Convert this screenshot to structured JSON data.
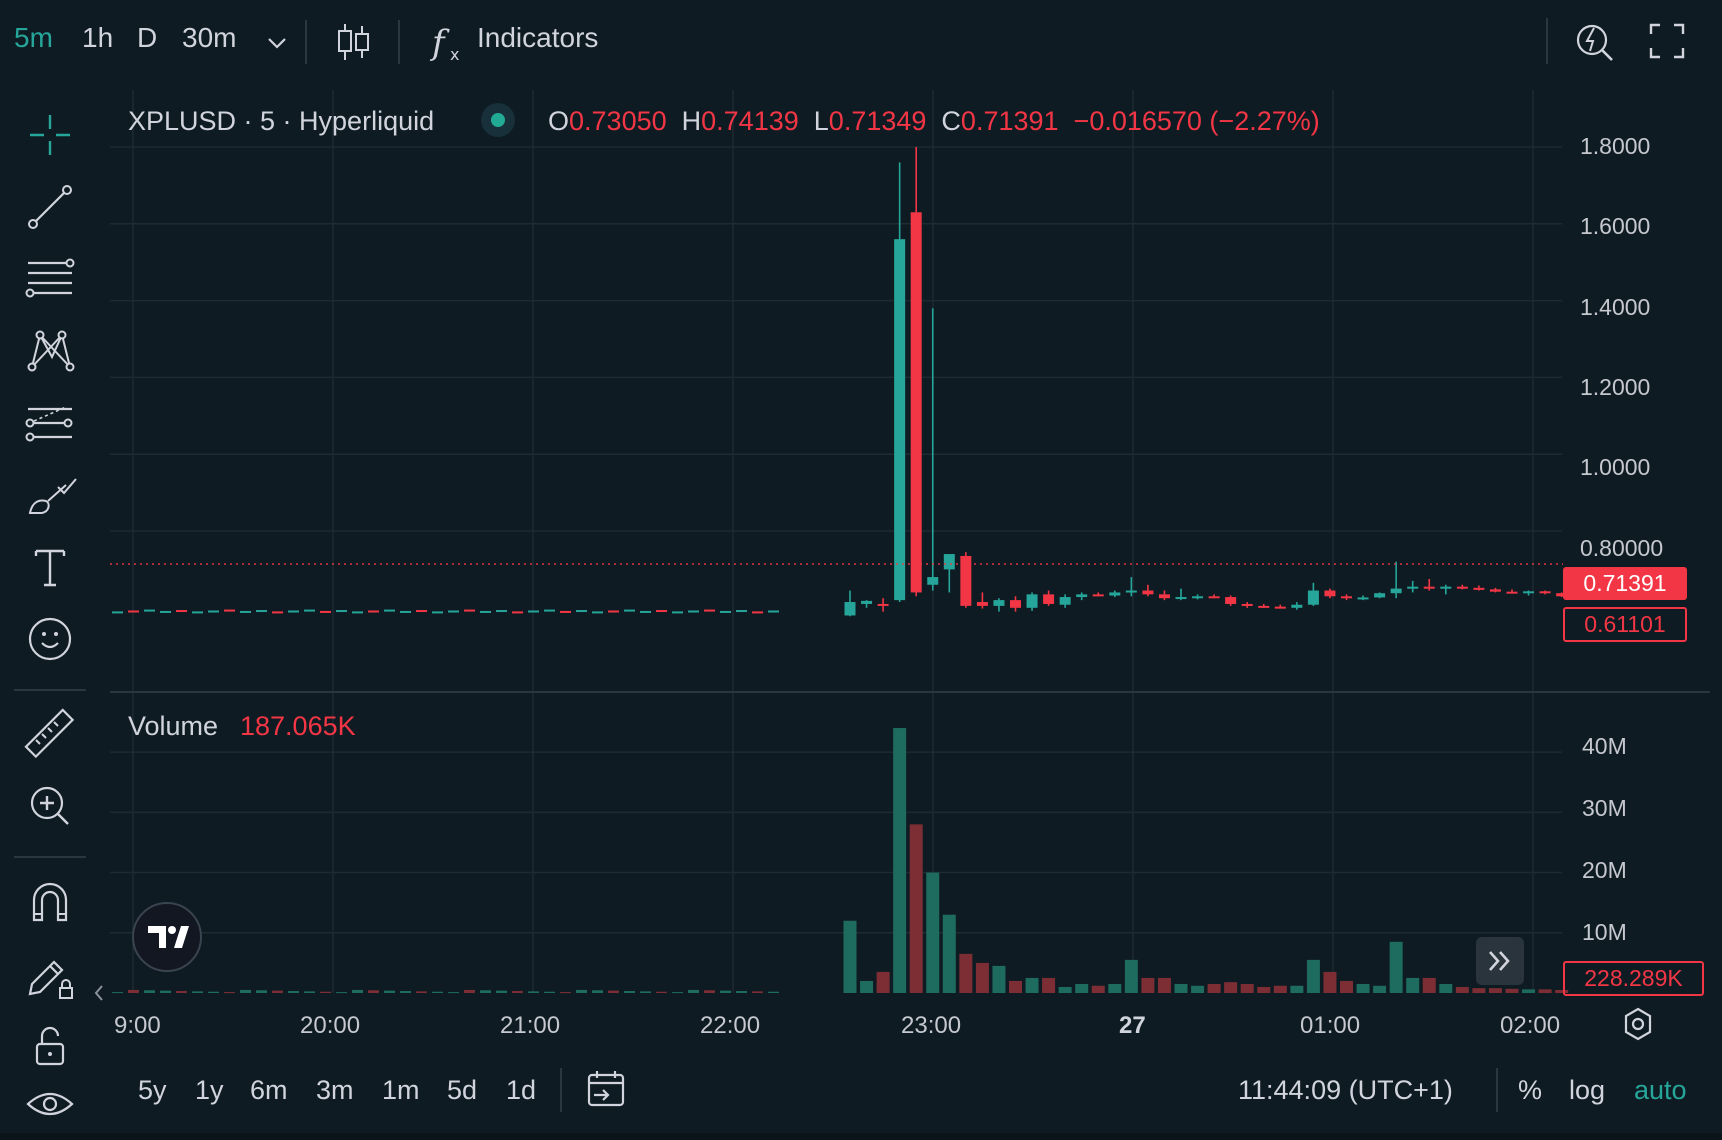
{
  "toolbar": {
    "timeframes": [
      "5m",
      "1h",
      "D",
      "30m"
    ],
    "active_timeframe": "5m",
    "indicators_label": "Indicators"
  },
  "legend": {
    "symbol_line": "XPLUSD · 5 · Hyperliquid",
    "o_label": "O",
    "o_value": "0.73050",
    "h_label": "H",
    "h_value": "0.74139",
    "l_label": "L",
    "l_value": "0.71349",
    "c_label": "C",
    "c_value": "0.71391",
    "change": "−0.016570 (−2.27%)",
    "volume_label": "Volume",
    "volume_value": "187.065K"
  },
  "price_axis": {
    "ticks": [
      "1.8000",
      "1.6000",
      "1.4000",
      "1.2000",
      "1.0000",
      "0.80000"
    ],
    "last_price_tag": "0.71391",
    "crosshair_tag": "0.61101"
  },
  "volume_axis": {
    "ticks": [
      "40M",
      "30M",
      "20M",
      "10M"
    ],
    "volume_tag": "228.289K"
  },
  "time_axis": {
    "ticks": [
      "9:00",
      "20:00",
      "21:00",
      "22:00",
      "23:00",
      "27",
      "01:00",
      "02:00"
    ]
  },
  "bottom": {
    "ranges": [
      "5y",
      "1y",
      "6m",
      "3m",
      "1m",
      "5d",
      "1d"
    ],
    "clock": "11:44:09 (UTC+1)",
    "percent_label": "%",
    "log_label": "log",
    "auto_label": "auto"
  },
  "colors": {
    "up": "#26a69a",
    "down": "#f23645",
    "up_volume": "#1e6b5f",
    "down_volume": "#7d2e35",
    "background": "#0f1b22"
  },
  "chart_data": {
    "type": "candlestick",
    "symbol": "XPLUSD",
    "interval": "5",
    "ylim": [
      0.55,
      1.8
    ],
    "volume_ylim": [
      0,
      45000000
    ],
    "price_ticks": [
      0.8,
      1.0,
      1.2,
      1.4,
      1.6,
      1.8
    ],
    "volume_ticks": [
      10000000,
      20000000,
      30000000,
      40000000
    ],
    "last_price": 0.71391,
    "candles": [
      {
        "t": "22:35",
        "o": 0.58,
        "h": 0.645,
        "l": 0.578,
        "c": 0.615,
        "v": 12000000
      },
      {
        "t": "22:40",
        "o": 0.61,
        "h": 0.62,
        "l": 0.6,
        "c": 0.618,
        "v": 2000000
      },
      {
        "t": "22:45",
        "o": 0.61,
        "h": 0.625,
        "l": 0.59,
        "c": 0.605,
        "v": 3500000
      },
      {
        "t": "22:50",
        "o": 0.62,
        "h": 1.76,
        "l": 0.615,
        "c": 1.56,
        "v": 44000000
      },
      {
        "t": "22:55",
        "o": 1.63,
        "h": 1.8,
        "l": 0.63,
        "c": 0.64,
        "v": 28000000
      },
      {
        "t": "23:00",
        "o": 0.66,
        "h": 1.38,
        "l": 0.645,
        "c": 0.68,
        "v": 20000000
      },
      {
        "t": "23:05",
        "o": 0.7,
        "h": 0.73,
        "l": 0.64,
        "c": 0.74,
        "v": 13000000
      },
      {
        "t": "23:10",
        "o": 0.735,
        "h": 0.745,
        "l": 0.6,
        "c": 0.605,
        "v": 6500000
      },
      {
        "t": "23:15",
        "o": 0.615,
        "h": 0.64,
        "l": 0.598,
        "c": 0.605,
        "v": 5000000
      },
      {
        "t": "23:20",
        "o": 0.605,
        "h": 0.625,
        "l": 0.59,
        "c": 0.62,
        "v": 4500000
      },
      {
        "t": "23:25",
        "o": 0.62,
        "h": 0.63,
        "l": 0.59,
        "c": 0.6,
        "v": 2000000
      },
      {
        "t": "23:30",
        "o": 0.6,
        "h": 0.64,
        "l": 0.592,
        "c": 0.635,
        "v": 2500000
      },
      {
        "t": "23:35",
        "o": 0.635,
        "h": 0.645,
        "l": 0.605,
        "c": 0.61,
        "v": 2500000
      },
      {
        "t": "23:40",
        "o": 0.608,
        "h": 0.635,
        "l": 0.6,
        "c": 0.628,
        "v": 1000000
      },
      {
        "t": "23:45",
        "o": 0.628,
        "h": 0.64,
        "l": 0.62,
        "c": 0.635,
        "v": 1500000
      },
      {
        "t": "23:50",
        "o": 0.635,
        "h": 0.64,
        "l": 0.63,
        "c": 0.632,
        "v": 1200000
      },
      {
        "t": "23:55",
        "o": 0.632,
        "h": 0.645,
        "l": 0.628,
        "c": 0.64,
        "v": 1500000
      },
      {
        "t": "00:00",
        "o": 0.64,
        "h": 0.68,
        "l": 0.63,
        "c": 0.645,
        "v": 5500000
      },
      {
        "t": "00:05",
        "o": 0.645,
        "h": 0.66,
        "l": 0.63,
        "c": 0.635,
        "v": 2500000
      },
      {
        "t": "00:10",
        "o": 0.635,
        "h": 0.645,
        "l": 0.62,
        "c": 0.625,
        "v": 2500000
      },
      {
        "t": "00:15",
        "o": 0.625,
        "h": 0.65,
        "l": 0.62,
        "c": 0.628,
        "v": 1500000
      },
      {
        "t": "00:20",
        "o": 0.628,
        "h": 0.635,
        "l": 0.622,
        "c": 0.63,
        "v": 1200000
      },
      {
        "t": "00:25",
        "o": 0.63,
        "h": 0.635,
        "l": 0.625,
        "c": 0.628,
        "v": 1500000
      },
      {
        "t": "00:30",
        "o": 0.628,
        "h": 0.632,
        "l": 0.605,
        "c": 0.61,
        "v": 1800000
      },
      {
        "t": "00:35",
        "o": 0.61,
        "h": 0.615,
        "l": 0.6,
        "c": 0.605,
        "v": 1500000
      },
      {
        "t": "00:40",
        "o": 0.605,
        "h": 0.61,
        "l": 0.6,
        "c": 0.603,
        "v": 1000000
      },
      {
        "t": "00:45",
        "o": 0.603,
        "h": 0.608,
        "l": 0.598,
        "c": 0.6,
        "v": 1200000
      },
      {
        "t": "00:50",
        "o": 0.6,
        "h": 0.615,
        "l": 0.595,
        "c": 0.608,
        "v": 1200000
      },
      {
        "t": "00:55",
        "o": 0.608,
        "h": 0.665,
        "l": 0.605,
        "c": 0.645,
        "v": 5500000
      },
      {
        "t": "01:00",
        "o": 0.645,
        "h": 0.65,
        "l": 0.625,
        "c": 0.63,
        "v": 3500000
      },
      {
        "t": "01:05",
        "o": 0.63,
        "h": 0.635,
        "l": 0.62,
        "c": 0.625,
        "v": 2000000
      },
      {
        "t": "01:10",
        "o": 0.625,
        "h": 0.632,
        "l": 0.62,
        "c": 0.627,
        "v": 1500000
      },
      {
        "t": "01:15",
        "o": 0.627,
        "h": 0.64,
        "l": 0.625,
        "c": 0.638,
        "v": 1200000
      },
      {
        "t": "01:20",
        "o": 0.638,
        "h": 0.72,
        "l": 0.625,
        "c": 0.65,
        "v": 8500000
      },
      {
        "t": "01:25",
        "o": 0.65,
        "h": 0.67,
        "l": 0.64,
        "c": 0.655,
        "v": 2500000
      },
      {
        "t": "01:30",
        "o": 0.655,
        "h": 0.675,
        "l": 0.645,
        "c": 0.65,
        "v": 2500000
      },
      {
        "t": "01:35",
        "o": 0.65,
        "h": 0.66,
        "l": 0.635,
        "c": 0.655,
        "v": 1500000
      },
      {
        "t": "01:40",
        "o": 0.655,
        "h": 0.66,
        "l": 0.648,
        "c": 0.652,
        "v": 1000000
      },
      {
        "t": "01:45",
        "o": 0.652,
        "h": 0.658,
        "l": 0.645,
        "c": 0.648,
        "v": 800000
      },
      {
        "t": "01:50",
        "o": 0.648,
        "h": 0.652,
        "l": 0.64,
        "c": 0.642,
        "v": 800000
      },
      {
        "t": "01:55",
        "o": 0.642,
        "h": 0.648,
        "l": 0.638,
        "c": 0.64,
        "v": 700000
      },
      {
        "t": "02:00",
        "o": 0.64,
        "h": 0.645,
        "l": 0.632,
        "c": 0.643,
        "v": 600000
      },
      {
        "t": "02:05",
        "o": 0.643,
        "h": 0.645,
        "l": 0.635,
        "c": 0.638,
        "v": 600000
      },
      {
        "t": "02:10",
        "o": 0.638,
        "h": 0.64,
        "l": 0.628,
        "c": 0.63,
        "v": 500000
      }
    ]
  }
}
